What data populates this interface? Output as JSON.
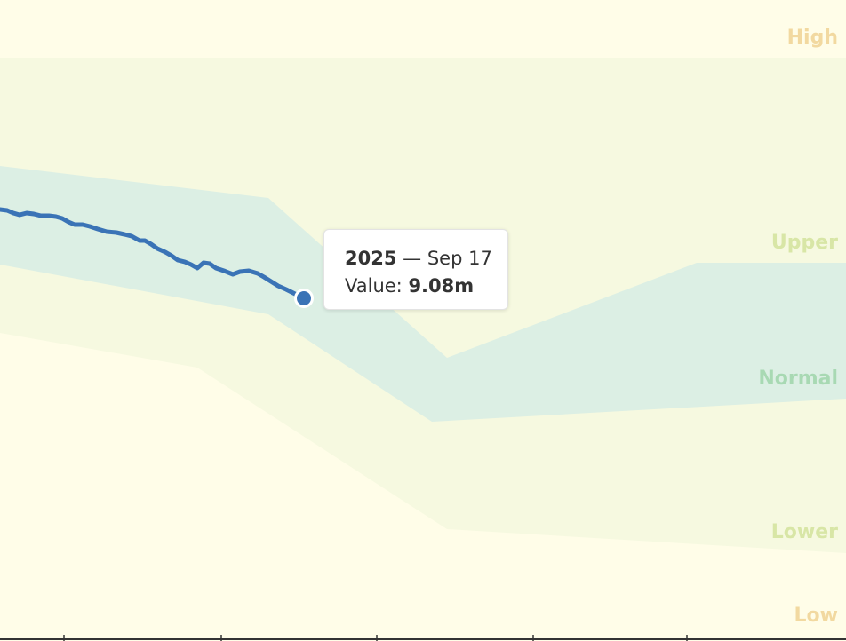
{
  "chart_data": {
    "type": "area",
    "title": "",
    "xlabel": "",
    "ylabel": "",
    "bands": [
      {
        "name": "High",
        "color": "#f2d9a0"
      },
      {
        "name": "Upper",
        "color": "#d8e6a6"
      },
      {
        "name": "Normal",
        "color": "#a8d9b3"
      },
      {
        "name": "Lower",
        "color": "#d8e6a6"
      },
      {
        "name": "Low",
        "color": "#f2d9a0"
      }
    ],
    "series": [
      {
        "color": "#3a73b6"
      }
    ],
    "highlight": {
      "year": "2025",
      "date": "Sep 17",
      "value_label": "Value:",
      "value": "9.08m"
    }
  },
  "colors": {
    "background": "#fffde8",
    "outer_band": "#f6f9e0",
    "inner_band": "#dcefe4",
    "line": "#3a73b6"
  }
}
